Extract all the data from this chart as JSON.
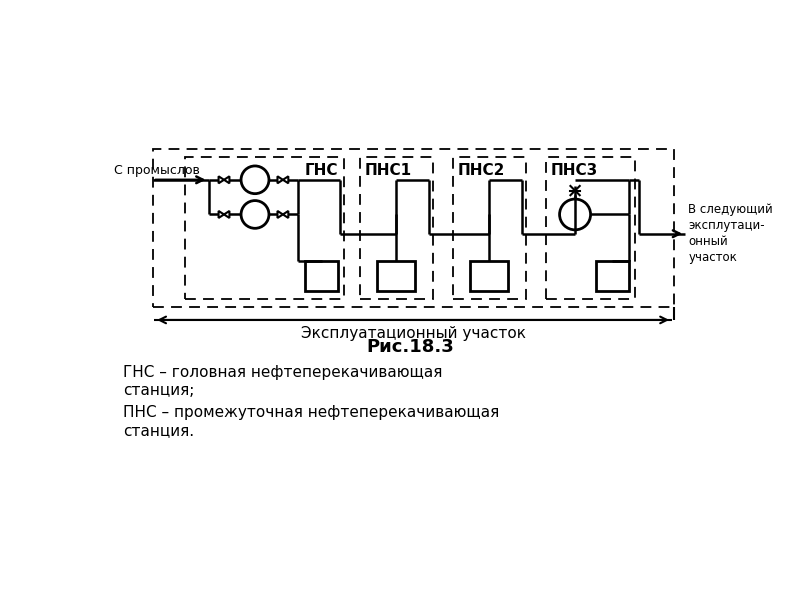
{
  "bg_color": "#ffffff",
  "title": "Рис.18.3",
  "legend_line1": "ГНС – головная нефтеперекачивающая",
  "legend_line1b": "станция;",
  "legend_line2": "ПНС – промежуточная нефтеперекачивающая",
  "legend_line2b": "станция.",
  "label_from": "С промыслов",
  "label_to": "В следующий\nэксплутаци-\nонный\nучасток",
  "label_expl": "Эксплуатационный участок",
  "station_labels": [
    "ГНС",
    "ПНС1",
    "ПНС2",
    "ПНС3"
  ]
}
